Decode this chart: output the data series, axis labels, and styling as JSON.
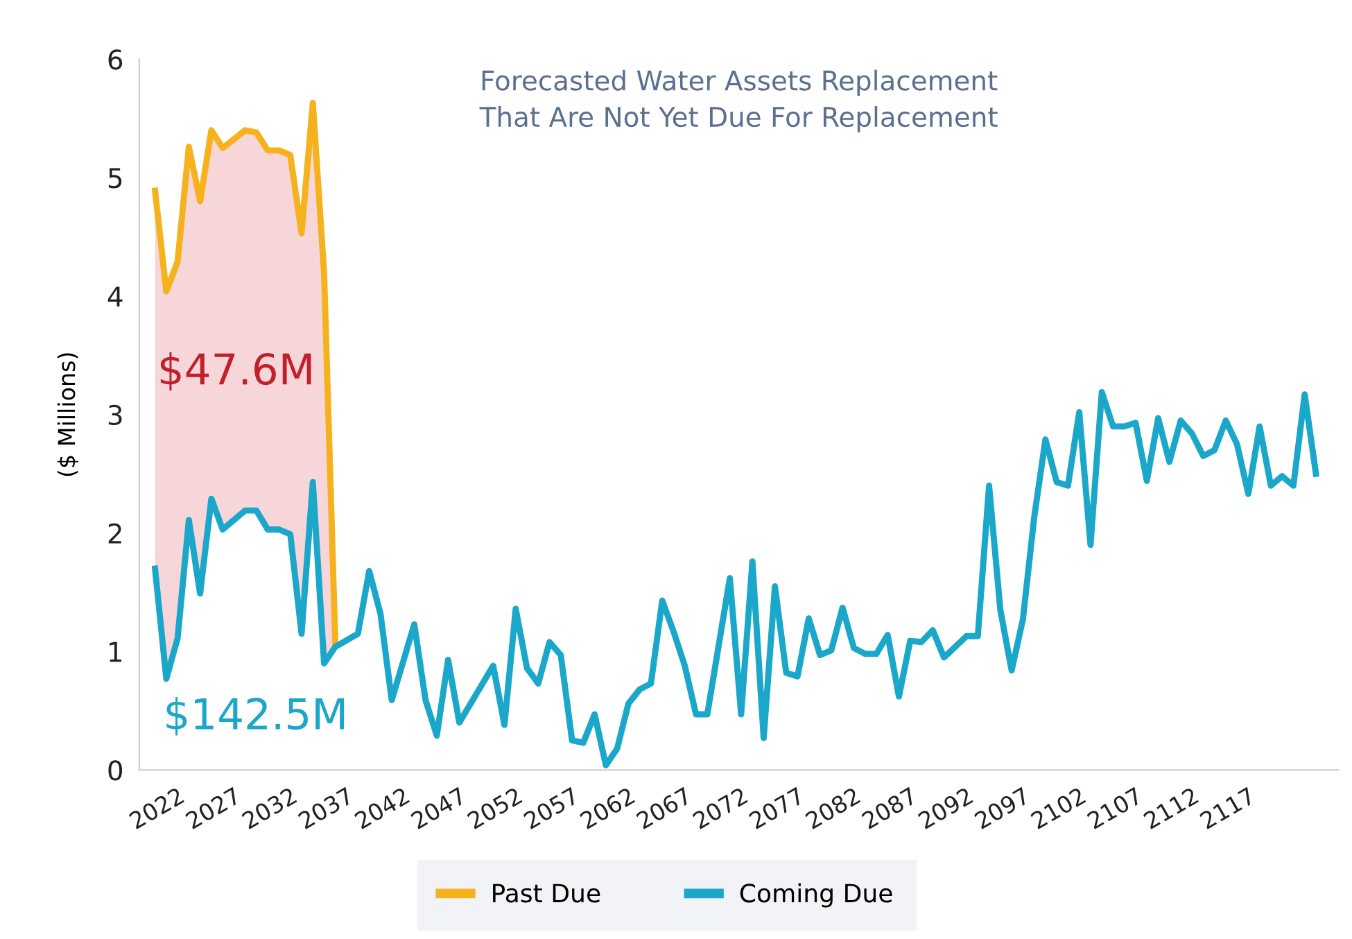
{
  "chart_data": {
    "type": "line",
    "title": "Forecasted Water Assets Replacement\nThat Are Not Yet Due For Replacement",
    "ylabel": "($ Millions)",
    "xlim": [
      2018.6,
      2125
    ],
    "xticks": [
      2022,
      2027,
      2032,
      2037,
      2042,
      2047,
      2052,
      2057,
      2062,
      2067,
      2072,
      2077,
      2082,
      2087,
      2092,
      2097,
      2102,
      2107,
      2112,
      2117
    ],
    "ylim": [
      0,
      6
    ],
    "yticks": [
      0,
      1,
      2,
      3,
      4,
      5,
      6
    ],
    "grid": false,
    "legend": "bottom",
    "marker": "none",
    "line_style": "solid",
    "annotations": [
      "$47.6M",
      "$142.5M"
    ],
    "series": [
      {
        "name": "Past Due",
        "color": "#f5b21c",
        "x": [
          2020,
          2021,
          2022,
          2023,
          2024,
          2025,
          2026,
          2028,
          2029,
          2030,
          2031,
          2032,
          2033,
          2034,
          2035,
          2036
        ],
        "values": [
          4.89,
          4.04,
          4.29,
          5.26,
          4.8,
          5.4,
          5.25,
          5.4,
          5.38,
          5.23,
          5.23,
          5.19,
          4.53,
          5.63,
          4.19,
          1.06
        ],
        "upper": [
          4.89,
          4.04,
          4.29,
          5.26,
          4.8,
          5.4,
          5.25,
          5.4,
          5.38,
          5.23,
          5.23,
          5.19,
          4.53,
          5.63,
          4.19,
          1.06
        ],
        "lower": [
          1.7,
          0.77,
          1.11,
          2.11,
          1.49,
          2.29,
          2.03,
          2.19,
          2.19,
          2.03,
          2.03,
          1.99,
          1.15,
          2.43,
          0.9,
          1.04
        ]
      },
      {
        "name": "Coming Due",
        "color": "#1ba7c9",
        "x": [
          2020,
          2021,
          2022,
          2023,
          2024,
          2025,
          2026,
          2028,
          2029,
          2030,
          2031,
          2032,
          2033,
          2034,
          2035,
          2036,
          2038,
          2039,
          2040,
          2041,
          2043,
          2044,
          2045,
          2046,
          2047,
          2050,
          2051,
          2052,
          2053,
          2054,
          2055,
          2056,
          2057,
          2058,
          2059,
          2060,
          2061,
          2062,
          2063,
          2064,
          2065,
          2066,
          2067,
          2068,
          2069,
          2071,
          2072,
          2073,
          2074,
          2075,
          2076,
          2077,
          2078,
          2079,
          2080,
          2081,
          2082,
          2083,
          2084,
          2085,
          2086,
          2087,
          2088,
          2089,
          2090,
          2092,
          2093,
          2094,
          2095,
          2096,
          2097,
          2098,
          2099,
          2100,
          2101,
          2102,
          2103,
          2104,
          2105,
          2106,
          2107,
          2108,
          2109,
          2110,
          2111,
          2112,
          2113,
          2114,
          2115,
          2116,
          2117,
          2118,
          2119,
          2120,
          2121,
          2122,
          2123
        ],
        "values": [
          1.7,
          0.77,
          1.11,
          2.11,
          1.49,
          2.29,
          2.03,
          2.19,
          2.19,
          2.03,
          2.03,
          1.99,
          1.15,
          2.43,
          0.9,
          1.04,
          1.15,
          1.68,
          1.32,
          0.59,
          1.23,
          0.59,
          0.29,
          0.93,
          0.4,
          0.88,
          0.38,
          1.36,
          0.86,
          0.73,
          1.08,
          0.97,
          0.25,
          0.23,
          0.47,
          0.04,
          0.18,
          0.56,
          0.68,
          0.73,
          1.43,
          1.17,
          0.88,
          0.47,
          0.47,
          1.62,
          0.47,
          1.76,
          0.27,
          1.55,
          0.82,
          0.79,
          1.28,
          0.97,
          1.01,
          1.37,
          1.03,
          0.98,
          0.98,
          1.14,
          0.62,
          1.09,
          1.08,
          1.18,
          0.95,
          1.13,
          1.13,
          2.4,
          1.35,
          0.84,
          1.27,
          2.13,
          2.79,
          2.43,
          2.4,
          3.02,
          1.9,
          3.19,
          2.9,
          2.9,
          2.93,
          2.44,
          2.97,
          2.6,
          2.95,
          2.84,
          2.65,
          2.7,
          2.95,
          2.75,
          2.33,
          2.9,
          2.4,
          2.48,
          2.4,
          3.17,
          2.5
        ]
      }
    ]
  }
}
